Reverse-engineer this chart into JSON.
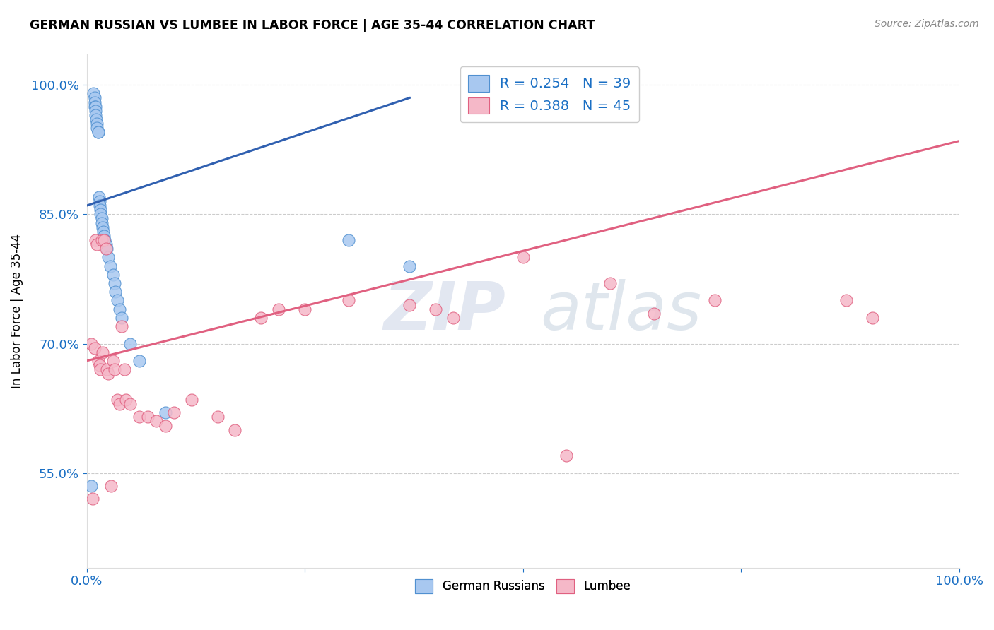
{
  "title": "GERMAN RUSSIAN VS LUMBEE IN LABOR FORCE | AGE 35-44 CORRELATION CHART",
  "source_text": "Source: ZipAtlas.com",
  "ylabel": "In Labor Force | Age 35-44",
  "xmin": 0.0,
  "xmax": 1.0,
  "ymin": 0.44,
  "ymax": 1.035,
  "xticks": [
    0.0,
    0.25,
    0.5,
    0.75,
    1.0
  ],
  "xticklabels": [
    "0.0%",
    "",
    "",
    "",
    "100.0%"
  ],
  "yticks": [
    0.55,
    0.7,
    0.85,
    1.0
  ],
  "yticklabels": [
    "55.0%",
    "70.0%",
    "85.0%",
    "100.0%"
  ],
  "grid_color": "#cccccc",
  "background_color": "#ffffff",
  "blue_color": "#a8c8f0",
  "pink_color": "#f5b8c8",
  "blue_edge_color": "#5090d0",
  "pink_edge_color": "#e06080",
  "blue_line_color": "#3060b0",
  "pink_line_color": "#e06080",
  "R_blue": 0.254,
  "N_blue": 39,
  "R_pink": 0.388,
  "N_pink": 45,
  "legend_bottom_labels": [
    "German Russians",
    "Lumbee"
  ],
  "watermark_zip": "ZIP",
  "watermark_atlas": "atlas",
  "blue_x": [
    0.005,
    0.008,
    0.009,
    0.009,
    0.009,
    0.01,
    0.01,
    0.01,
    0.011,
    0.012,
    0.012,
    0.013,
    0.013,
    0.014,
    0.015,
    0.015,
    0.016,
    0.016,
    0.017,
    0.017,
    0.018,
    0.019,
    0.02,
    0.021,
    0.022,
    0.023,
    0.025,
    0.027,
    0.03,
    0.032,
    0.033,
    0.035,
    0.038,
    0.04,
    0.05,
    0.06,
    0.09,
    0.3,
    0.37
  ],
  "blue_y": [
    0.535,
    0.99,
    0.985,
    0.98,
    0.975,
    0.975,
    0.97,
    0.965,
    0.96,
    0.955,
    0.95,
    0.945,
    0.945,
    0.87,
    0.865,
    0.86,
    0.855,
    0.85,
    0.845,
    0.84,
    0.835,
    0.83,
    0.825,
    0.82,
    0.815,
    0.81,
    0.8,
    0.79,
    0.78,
    0.77,
    0.76,
    0.75,
    0.74,
    0.73,
    0.7,
    0.68,
    0.62,
    0.82,
    0.79
  ],
  "pink_x": [
    0.005,
    0.007,
    0.009,
    0.01,
    0.012,
    0.013,
    0.015,
    0.016,
    0.017,
    0.018,
    0.02,
    0.022,
    0.023,
    0.025,
    0.028,
    0.03,
    0.032,
    0.035,
    0.038,
    0.04,
    0.043,
    0.045,
    0.05,
    0.06,
    0.07,
    0.08,
    0.09,
    0.1,
    0.12,
    0.15,
    0.17,
    0.2,
    0.22,
    0.25,
    0.3,
    0.37,
    0.4,
    0.42,
    0.5,
    0.55,
    0.6,
    0.65,
    0.72,
    0.87,
    0.9
  ],
  "pink_y": [
    0.7,
    0.52,
    0.695,
    0.82,
    0.815,
    0.68,
    0.675,
    0.67,
    0.82,
    0.69,
    0.82,
    0.81,
    0.67,
    0.665,
    0.535,
    0.68,
    0.67,
    0.635,
    0.63,
    0.72,
    0.67,
    0.635,
    0.63,
    0.615,
    0.615,
    0.61,
    0.605,
    0.62,
    0.635,
    0.615,
    0.6,
    0.73,
    0.74,
    0.74,
    0.75,
    0.745,
    0.74,
    0.73,
    0.8,
    0.57,
    0.77,
    0.735,
    0.75,
    0.75,
    0.73
  ],
  "blue_trendline_x": [
    0.0,
    0.37
  ],
  "pink_trendline_x": [
    0.0,
    1.0
  ]
}
